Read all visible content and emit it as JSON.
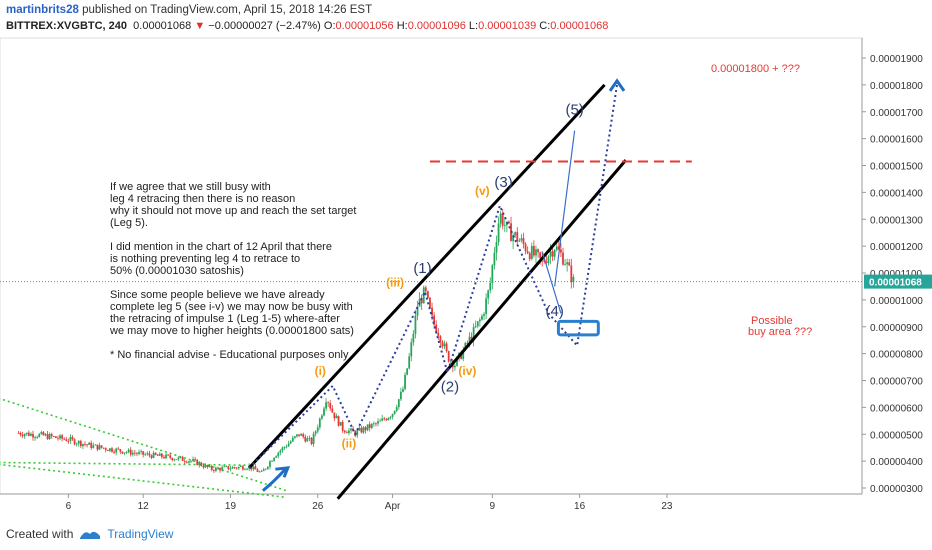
{
  "header": {
    "author": "martinbrits28",
    "published_text": "published on TradingView.com, April 15, 2018 14:26 EST"
  },
  "ohlc": {
    "symbol": "BITTREX:XVGBTC, 240",
    "price": "0.00001068",
    "change": "−0.00000027 (−2.47%)",
    "o_label": "O:",
    "o_value": "0.00001056",
    "h_label": "H:",
    "h_value": "0.00001096",
    "l_label": "L:",
    "l_value": "0.00001039",
    "c_label": "C:",
    "c_value": "0.00001068"
  },
  "annotation": {
    "lines": [
      "If we agree that we still busy with",
      "leg 4 retracing then there is no reason",
      "why it should not move up and reach the set target",
      "(Leg 5).",
      "",
      "I did mention in the chart of 12 April that there",
      "is nothing preventing leg 4 to retrace to",
      "50% (0.00001030 satoshis)",
      "",
      "Since some people believe we have already",
      "complete leg 5 (see i-v) we may now be busy with",
      "the retracing of impulse 1 (Leg 1-5) where-after",
      "we may move to higher heights (0.00001800 sats)",
      "",
      "* No financial advise - Educational purposes only"
    ]
  },
  "chart_data": {
    "type": "line",
    "y_ticks": [
      "0.00000300",
      "0.00000400",
      "0.00000500",
      "0.00000600",
      "0.00000700",
      "0.00000800",
      "0.00000900",
      "0.00001000",
      "0.00001100",
      "0.00001200",
      "0.00001300",
      "0.00001400",
      "0.00001500",
      "0.00001600",
      "0.00001700",
      "0.00001800",
      "0.00001900"
    ],
    "ylim": [
      2.7e-06,
      1.97e-05
    ],
    "x_ticks": [
      {
        "label": "6",
        "day": 6
      },
      {
        "label": "12",
        "day": 12
      },
      {
        "label": "19",
        "day": 19
      },
      {
        "label": "26",
        "day": 26
      },
      {
        "label": "Apr",
        "day": 32
      },
      {
        "label": "9",
        "day": 40
      },
      {
        "label": "16",
        "day": 47
      },
      {
        "label": "23",
        "day": 54
      }
    ],
    "current_price_label": "0.00001068",
    "current_price": 1.068e-05,
    "price_path": [
      [
        2,
        5.05e-06
      ],
      [
        4,
        4.95e-06
      ],
      [
        6,
        4.8e-06
      ],
      [
        8,
        4.55e-06
      ],
      [
        10,
        4.4e-06
      ],
      [
        12,
        4.25e-06
      ],
      [
        14,
        4.15e-06
      ],
      [
        16,
        4e-06
      ],
      [
        17.5,
        3.7e-06
      ],
      [
        19,
        3.75e-06
      ],
      [
        20.5,
        3.8e-06
      ],
      [
        21.5,
        3.55e-06
      ],
      [
        22.5,
        4.2e-06
      ],
      [
        23.5,
        4.6e-06
      ],
      [
        24.5,
        5e-06
      ],
      [
        25.5,
        4.7e-06
      ],
      [
        26.2,
        5.6e-06
      ],
      [
        26.7,
        6.4e-06
      ],
      [
        27.2,
        5.8e-06
      ],
      [
        28,
        5.2e-06
      ],
      [
        29,
        5.05e-06
      ],
      [
        30,
        5.25e-06
      ],
      [
        31,
        5.45e-06
      ],
      [
        32,
        5.8e-06
      ],
      [
        32.8,
        6.6e-06
      ],
      [
        33.4,
        8e-06
      ],
      [
        34,
        9.8e-06
      ],
      [
        34.6,
        1.03e-05
      ],
      [
        35.2,
        9.2e-06
      ],
      [
        35.8,
        8.7e-06
      ],
      [
        36.4,
        7.9e-06
      ],
      [
        37,
        7.6e-06
      ],
      [
        37.8,
        8.2e-06
      ],
      [
        38.5,
        8.8e-06
      ],
      [
        39.2,
        9.4e-06
      ],
      [
        39.8,
        1.05e-05
      ],
      [
        40.2,
        1.2e-05
      ],
      [
        40.6,
        1.32e-05
      ],
      [
        41.2,
        1.26e-05
      ],
      [
        42,
        1.23e-05
      ],
      [
        43,
        1.18e-05
      ],
      [
        44,
        1.14e-05
      ],
      [
        45,
        1.2e-05
      ],
      [
        45.8,
        1.15e-05
      ],
      [
        46.5,
        1.068e-05
      ]
    ],
    "channel_lines": [
      {
        "p1": [
          20.5,
          3.75e-06
        ],
        "p2": [
          49,
          1.8e-05
        ]
      },
      {
        "p1": [
          27.6,
          2.6e-06
        ],
        "p2": [
          50.7,
          1.52e-05
        ]
      }
    ],
    "wave_path_dotted": [
      [
        20.5,
        3.75e-06
      ],
      [
        27.2,
        6.8e-06
      ],
      [
        29,
        5e-06
      ],
      [
        34.6,
        1.03e-05
      ],
      [
        36.4,
        7.3e-06
      ],
      [
        40.6,
        1.35e-05
      ],
      [
        44.5,
        9.5e-06
      ],
      [
        46.8,
        8.3e-06
      ],
      [
        50,
        1.8e-05
      ]
    ],
    "wave5_solid_line": [
      [
        45,
        1.05e-05
      ],
      [
        46.6,
        1.63e-05
      ]
    ],
    "ext_line": [
      [
        44,
        1.18e-05
      ],
      [
        45.5,
        9.5e-06
      ]
    ],
    "red_target_line": {
      "y": 1.515e-05,
      "x_from": 35,
      "x_to": 56
    },
    "green_lines": [
      {
        "p1": [
          0,
          6.4e-06
        ],
        "p2": [
          23.5,
          2.9e-06
        ]
      },
      {
        "p1": [
          0,
          3.9e-06
        ],
        "p2": [
          23.5,
          2.65e-06
        ]
      },
      {
        "p1": [
          0,
          3.95e-06
        ],
        "p2": [
          20.5,
          3.85e-06
        ]
      }
    ],
    "buy_box": {
      "x1": 45.3,
      "x2": 48.5,
      "y_top": 9.2e-06,
      "y_bottom": 8.7e-06
    },
    "target_text": "0.00001800 + ???",
    "possible_lines": [
      "Possible",
      "buy area ???"
    ],
    "wave_labels": [
      {
        "text": "(i)",
        "x": 26.2,
        "y": 7.2e-06,
        "color": "#f39c12"
      },
      {
        "text": "(ii)",
        "x": 28.5,
        "y": 4.5e-06,
        "color": "#f39c12"
      },
      {
        "text": "(iii)",
        "x": 32.2,
        "y": 1.05e-05,
        "color": "#f39c12"
      },
      {
        "text": "(iv)",
        "x": 38,
        "y": 7.2e-06,
        "color": "#f39c12"
      },
      {
        "text": "(v)",
        "x": 39.2,
        "y": 1.39e-05,
        "color": "#f39c12"
      },
      {
        "text": "(1)",
        "x": 34.4,
        "y": 1.1e-05,
        "color": "#2c3e70"
      },
      {
        "text": "(2)",
        "x": 36.6,
        "y": 6.6e-06,
        "color": "#2c3e70"
      },
      {
        "text": "(3)",
        "x": 40.9,
        "y": 1.42e-05,
        "color": "#2c3e70"
      },
      {
        "text": "(4)",
        "x": 45,
        "y": 9.4e-06,
        "color": "#2c3e70"
      },
      {
        "text": "(5)",
        "x": 46.6,
        "y": 1.69e-05,
        "color": "#2c3e70"
      }
    ]
  },
  "footer": {
    "created_with": "Created with",
    "brand": "TradingView"
  },
  "colors": {
    "channel": "#000000",
    "wave_dotted": "#2c3e9e",
    "red_line": "#e53935",
    "green": "#33cc33",
    "candle_up": "#26a65b",
    "candle_down": "#e53935",
    "blue_arrow": "#1e6fc2",
    "orange": "#f39c12"
  }
}
